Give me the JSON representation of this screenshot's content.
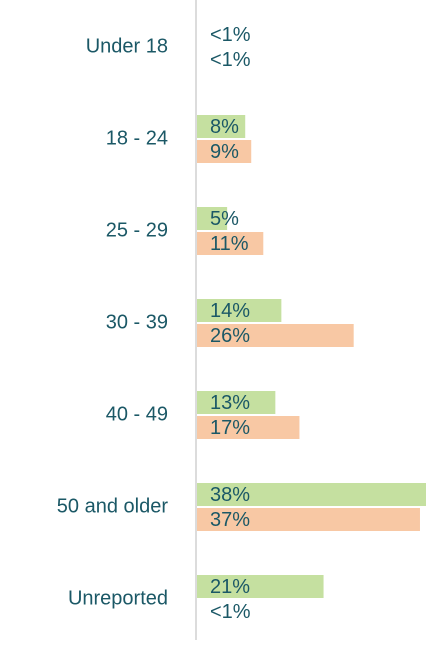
{
  "chart_data": {
    "type": "hbar",
    "categories": [
      "Under 18",
      "18 - 24",
      "25 - 29",
      "30 - 39",
      "40 - 49",
      "50 and older",
      "Unreported"
    ],
    "series": [
      {
        "color": "#c5e0a0",
        "values": [
          0,
          8,
          5,
          14,
          13,
          38,
          21
        ],
        "value_labels": [
          "<1%",
          "8%",
          "5%",
          "14%",
          "13%",
          "38%",
          "21%"
        ]
      },
      {
        "color": "#f8c8a4",
        "values": [
          0,
          9,
          11,
          26,
          17,
          37,
          0
        ],
        "value_labels": [
          "<1%",
          "9%",
          "11%",
          "26%",
          "17%",
          "37%",
          "<1%"
        ]
      }
    ],
    "xlim": [
      0,
      38
    ]
  }
}
